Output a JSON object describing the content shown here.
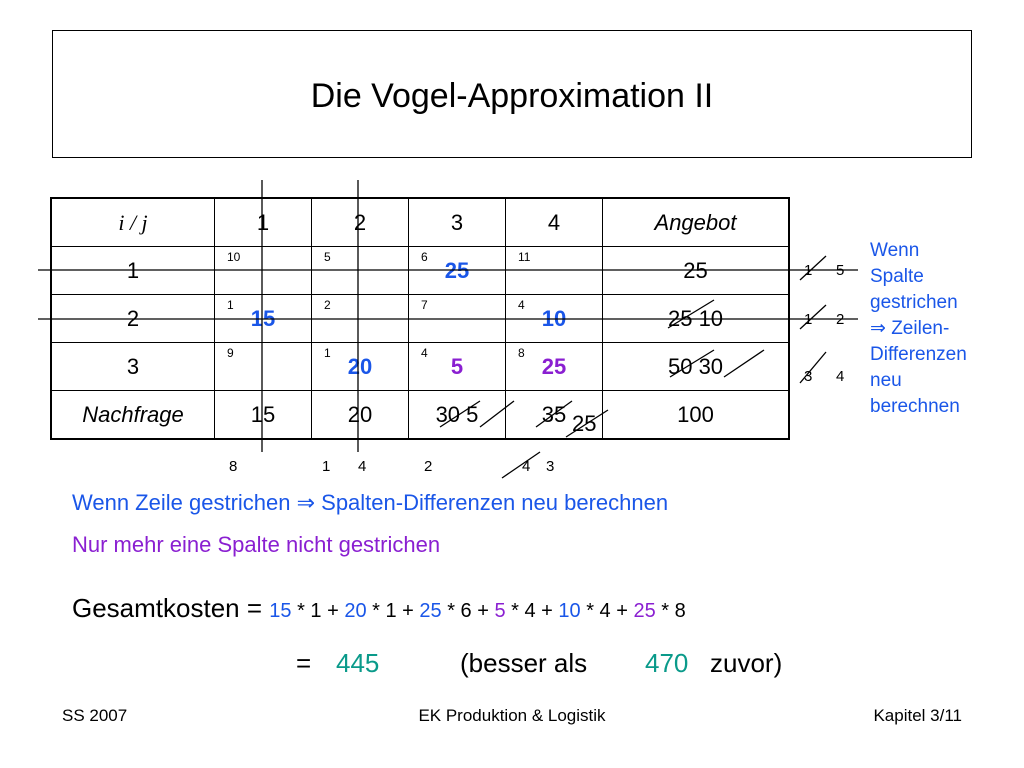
{
  "title": "Die Vogel-Approximation II",
  "table": {
    "header": [
      "i / j",
      "1",
      "2",
      "3",
      "4",
      "Angebot"
    ],
    "rows": [
      {
        "label": "1",
        "costs": [
          "10",
          "5",
          "6",
          "11"
        ],
        "allocations": [
          "",
          "",
          "25",
          ""
        ],
        "supply": "25"
      },
      {
        "label": "2",
        "costs": [
          "1",
          "2",
          "7",
          "4"
        ],
        "allocations": [
          "15",
          "",
          "",
          "10"
        ],
        "supply": "25",
        "supply_new": "10"
      },
      {
        "label": "3",
        "costs": [
          "9",
          "1",
          "4",
          "8"
        ],
        "allocations": [
          "",
          "20",
          "5",
          "25"
        ],
        "supply": "50",
        "supply_new": "30"
      }
    ],
    "demand_label": "Nachfrage",
    "demand": [
      "15",
      "20",
      "30",
      "35"
    ],
    "demand_new": [
      "",
      "",
      "5",
      "25"
    ],
    "total": "100"
  },
  "row_differences": [
    [
      "1",
      "5"
    ],
    [
      "1",
      "2"
    ],
    [
      "3",
      "4"
    ]
  ],
  "col_differences": [
    "8",
    "1",
    "4",
    "2",
    "4",
    "3"
  ],
  "note_right": [
    "Wenn",
    "Spalte",
    "gestrichen",
    "⇒ Zeilen-",
    "Differenzen",
    "neu",
    "berechnen"
  ],
  "note_row": "Wenn Zeile gestrichen ⇒ Spalten-Differenzen neu berechnen",
  "note_last": "Nur mehr eine Spalte nicht gestrichen",
  "cost_formula": {
    "label": "Gesamtkosten = ",
    "terms": [
      {
        "qty": "15",
        "op": " * 1 + "
      },
      {
        "qty": "20",
        "op": " * 1 + "
      },
      {
        "qty": "25",
        "op": " * 6 + "
      },
      {
        "qty": "5",
        "op": " * 4 + "
      },
      {
        "qty": "10",
        "op": " * 4 + "
      },
      {
        "qty": "25",
        "op": " * 8"
      }
    ]
  },
  "result": {
    "eq": "=",
    "value": "445",
    "paren_open": "(besser als",
    "prev": "470",
    "paren_close": "zuvor)"
  },
  "footer": {
    "left": "SS 2007",
    "center": "EK Produktion & Logistik",
    "right": "Kapitel 3/11"
  },
  "colors": {
    "blue": "#1a56e8",
    "purple": "#8a1fd1",
    "teal": "#0a9a8a"
  }
}
